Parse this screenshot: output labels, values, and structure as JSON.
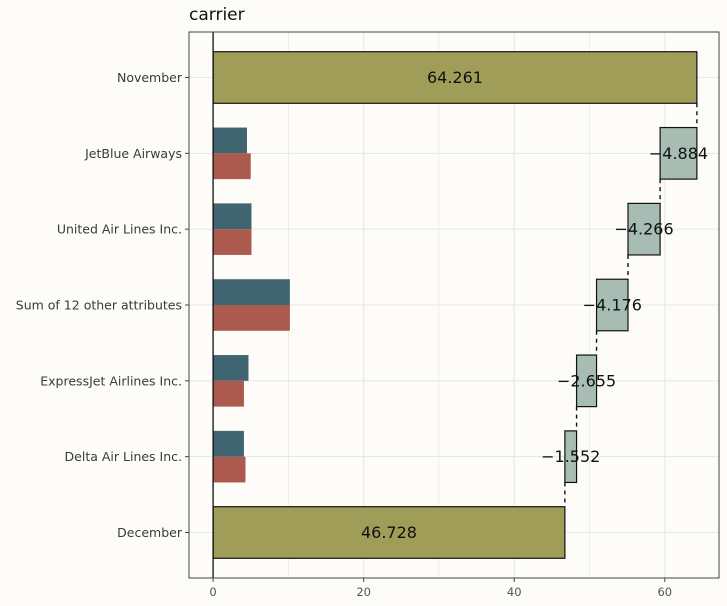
{
  "chart_data": {
    "type": "bar",
    "title": "carrier",
    "xlabel": "",
    "ylabel": "",
    "xlim": [
      -3.2,
      67.2
    ],
    "x_ticks": [
      0,
      20,
      40,
      60
    ],
    "x_tick_labels": [
      "0",
      "20",
      "40",
      "60"
    ],
    "categories": [
      "November",
      "JetBlue Airways",
      "United Air Lines Inc.",
      "Sum of 12 other attributes",
      "ExpressJet Airlines Inc.",
      "Delta Air Lines Inc.",
      "December"
    ],
    "waterfall": [
      {
        "category": "November",
        "kind": "total",
        "start": 0,
        "end": 64.261,
        "label": "64.261"
      },
      {
        "category": "JetBlue Airways",
        "kind": "delta",
        "start": 64.261,
        "end": 59.377,
        "label": "−4.884"
      },
      {
        "category": "United Air Lines Inc.",
        "kind": "delta",
        "start": 59.377,
        "end": 55.111,
        "label": "−4.266"
      },
      {
        "category": "Sum of 12 other attributes",
        "kind": "delta",
        "start": 55.111,
        "end": 50.935,
        "label": "−4.176"
      },
      {
        "category": "ExpressJet Airlines Inc.",
        "kind": "delta",
        "start": 50.935,
        "end": 48.28,
        "label": "−2.655"
      },
      {
        "category": "Delta Air Lines Inc.",
        "kind": "delta",
        "start": 48.28,
        "end": 46.728,
        "label": "−1.552"
      },
      {
        "category": "December",
        "kind": "total",
        "start": 0,
        "end": 46.728,
        "label": "46.728"
      }
    ],
    "share_bars": [
      {
        "category": "JetBlue Airways",
        "top": 4.5,
        "bottom": 5.0
      },
      {
        "category": "United Air Lines Inc.",
        "top": 5.1,
        "bottom": 5.1
      },
      {
        "category": "Sum of 12 other attributes",
        "top": 10.2,
        "bottom": 10.2
      },
      {
        "category": "ExpressJet Airlines Inc.",
        "top": 4.7,
        "bottom": 4.1
      },
      {
        "category": "Delta Air Lines Inc.",
        "top": 4.1,
        "bottom": 4.3
      }
    ],
    "grid": true,
    "colors": {
      "total": "#9f9d58",
      "delta": "#a7bdb3",
      "share_top": "#3f6570",
      "share_bottom": "#ad5a4e",
      "background": "#fdfcf8",
      "grid": "#e6e6e6"
    }
  }
}
